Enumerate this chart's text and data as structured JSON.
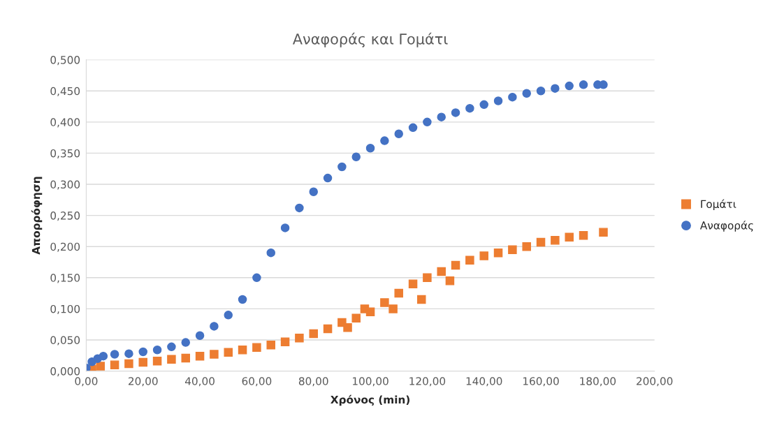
{
  "chart_data": {
    "type": "scatter",
    "title": "Αναφοράς και Γομάτι",
    "xlabel": "Χρόνος (min)",
    "ylabel": "Απορρόφηση",
    "xlim": [
      0,
      200
    ],
    "ylim": [
      0,
      0.5
    ],
    "xticks": [
      {
        "value": 0,
        "label": "0,00"
      },
      {
        "value": 20,
        "label": "20,00"
      },
      {
        "value": 40,
        "label": "40,00"
      },
      {
        "value": 60,
        "label": "60,00"
      },
      {
        "value": 80,
        "label": "80,00"
      },
      {
        "value": 100,
        "label": "100,00"
      },
      {
        "value": 120,
        "label": "120,00"
      },
      {
        "value": 140,
        "label": "140,00"
      },
      {
        "value": 160,
        "label": "160,00"
      },
      {
        "value": 180,
        "label": "180,00"
      },
      {
        "value": 200,
        "label": "200,00"
      }
    ],
    "yticks": [
      {
        "value": 0,
        "label": "0,000"
      },
      {
        "value": 0.05,
        "label": "0,050"
      },
      {
        "value": 0.1,
        "label": "0,100"
      },
      {
        "value": 0.15,
        "label": "0,150"
      },
      {
        "value": 0.2,
        "label": "0,200"
      },
      {
        "value": 0.25,
        "label": "0,250"
      },
      {
        "value": 0.3,
        "label": "0,300"
      },
      {
        "value": 0.35,
        "label": "0,350"
      },
      {
        "value": 0.4,
        "label": "0,400"
      },
      {
        "value": 0.45,
        "label": "0,450"
      },
      {
        "value": 0.5,
        "label": "0,500"
      }
    ],
    "grid": "y",
    "legend": "right",
    "series": [
      {
        "name": "Γομάτι",
        "color": "#ed7d31",
        "marker": "square",
        "x": [
          2,
          5,
          10,
          15,
          20,
          25,
          30,
          35,
          40,
          45,
          50,
          55,
          60,
          65,
          70,
          75,
          80,
          85,
          90,
          92,
          95,
          98,
          100,
          105,
          108,
          110,
          115,
          118,
          120,
          125,
          128,
          130,
          135,
          140,
          145,
          150,
          155,
          160,
          165,
          170,
          175,
          182
        ],
        "values": [
          0.003,
          0.008,
          0.01,
          0.012,
          0.014,
          0.016,
          0.019,
          0.021,
          0.024,
          0.027,
          0.03,
          0.034,
          0.038,
          0.042,
          0.047,
          0.053,
          0.06,
          0.068,
          0.078,
          0.07,
          0.085,
          0.1,
          0.095,
          0.11,
          0.1,
          0.125,
          0.14,
          0.115,
          0.15,
          0.16,
          0.145,
          0.17,
          0.178,
          0.185,
          0.19,
          0.195,
          0.2,
          0.207,
          0.21,
          0.215,
          0.218,
          0.223
        ]
      },
      {
        "name": "Αναφοράς",
        "color": "#4472c4",
        "marker": "circle",
        "x": [
          0,
          2,
          4,
          6,
          10,
          15,
          20,
          25,
          30,
          35,
          40,
          45,
          50,
          55,
          60,
          65,
          70,
          75,
          80,
          85,
          90,
          95,
          100,
          105,
          110,
          115,
          120,
          125,
          130,
          135,
          140,
          145,
          150,
          155,
          160,
          165,
          170,
          175,
          180,
          182
        ],
        "values": [
          0.005,
          0.015,
          0.02,
          0.024,
          0.027,
          0.028,
          0.031,
          0.034,
          0.039,
          0.046,
          0.057,
          0.072,
          0.09,
          0.115,
          0.15,
          0.19,
          0.23,
          0.262,
          0.288,
          0.31,
          0.328,
          0.344,
          0.358,
          0.37,
          0.381,
          0.391,
          0.4,
          0.408,
          0.415,
          0.422,
          0.428,
          0.434,
          0.44,
          0.446,
          0.45,
          0.454,
          0.458,
          0.46,
          0.46,
          0.46
        ]
      }
    ]
  }
}
